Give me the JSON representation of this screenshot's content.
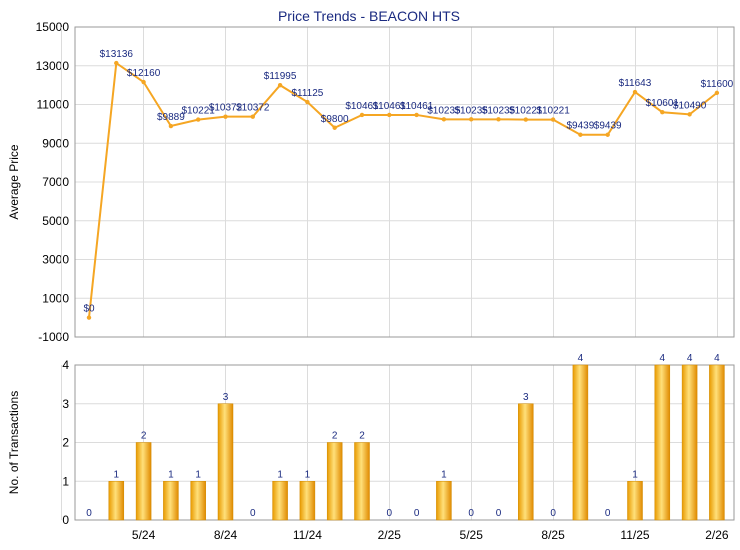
{
  "title": "Price Trends - BEACON HTS",
  "chart_data": [
    {
      "type": "line",
      "title": "Price Trends - BEACON HTS",
      "ylabel": "Average Price",
      "ylim": [
        -1000,
        15000
      ],
      "yticks": [
        "-1000",
        "1000",
        "3000",
        "5000",
        "7000",
        "9000",
        "11000",
        "13000",
        "15000"
      ],
      "grid": true,
      "color": "#f5a623",
      "x": [
        1,
        2,
        3,
        4,
        5,
        6,
        7,
        8,
        9,
        10,
        11,
        12,
        13,
        14,
        15,
        16,
        17,
        18,
        19,
        20,
        21,
        22,
        23,
        24
      ],
      "values": [
        0,
        13136,
        12160,
        9889,
        10221,
        10372,
        10372,
        11995,
        11125,
        9800,
        10461,
        10461,
        10461,
        10235,
        10235,
        10235,
        10221,
        10221,
        9439,
        9439,
        11643,
        10601,
        10490,
        11600
      ],
      "labels": [
        "$0",
        "$13136",
        "$12160",
        "$9889",
        "$10221",
        "$10372",
        "$10372",
        "$11995",
        "$11125",
        "$9800",
        "$10461",
        "$10461",
        "$10461",
        "$10235",
        "$10235",
        "$10235",
        "$10221",
        "$10221",
        "$9439",
        "$9439",
        "$11643",
        "$10601",
        "$10490",
        "$11600"
      ]
    },
    {
      "type": "bar",
      "ylabel": "No. of Transactions",
      "ylim": [
        0,
        4
      ],
      "yticks": [
        "0",
        "1",
        "2",
        "3",
        "4"
      ],
      "grid": true,
      "color": "#f5b400",
      "categories": [
        "",
        "",
        "5/24",
        "",
        "",
        "8/24",
        "",
        "",
        "11/24",
        "",
        "",
        "2/25",
        "",
        "",
        "5/25",
        "",
        "",
        "8/25",
        "",
        "",
        "11/25",
        "",
        "",
        "2/26"
      ],
      "values": [
        0,
        1,
        2,
        1,
        1,
        3,
        0,
        1,
        1,
        2,
        2,
        0,
        0,
        1,
        0,
        0,
        3,
        0,
        4,
        0,
        1,
        4,
        4,
        4
      ]
    }
  ]
}
